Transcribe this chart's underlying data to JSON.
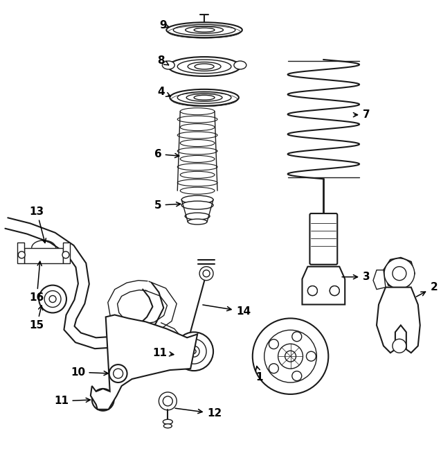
{
  "bg_color": "#ffffff",
  "line_color": "#1a1a1a",
  "fig_width": 6.37,
  "fig_height": 6.48,
  "dpi": 100
}
